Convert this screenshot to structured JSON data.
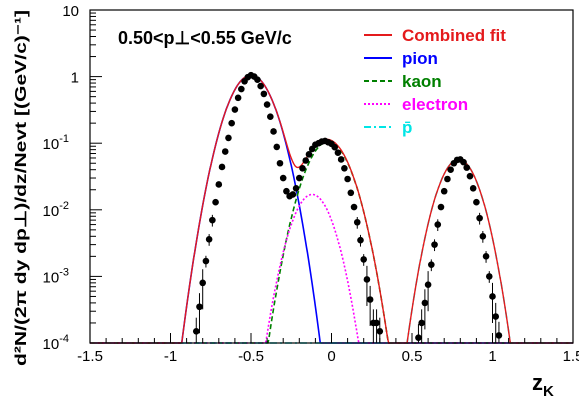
{
  "chart_data": {
    "type": "line",
    "y_scale": "log",
    "xlim": [
      -1.5,
      1.5
    ],
    "ylim": [
      0.0001,
      10
    ],
    "x_ticks": [
      "-1.5",
      "-1",
      "-0.5",
      "0",
      "0.5",
      "1",
      "1.5"
    ],
    "x_tick_values": [
      -1.5,
      -1,
      -0.5,
      0,
      0.5,
      1,
      1.5
    ],
    "y_ticks": [
      {
        "value": 10,
        "base": "10",
        "exp": ""
      },
      {
        "value": 1,
        "base": "1",
        "exp": ""
      },
      {
        "value": 0.1,
        "base": "10",
        "exp": "-1"
      },
      {
        "value": 0.01,
        "base": "10",
        "exp": "-2"
      },
      {
        "value": 0.001,
        "base": "10",
        "exp": "-3"
      },
      {
        "value": 0.0001,
        "base": "10",
        "exp": "-4"
      }
    ],
    "xlabel": {
      "main": "z",
      "sub": "K"
    },
    "ylabel_text": "d²N/(2π dy dp⊥)/dz/Nevt [(GeV/c)⁻¹]",
    "annotation": "0.50<p⊥<0.55 GeV/c",
    "legend": [
      {
        "label": "Combined fit",
        "color": "#e41a1c",
        "style": "solid"
      },
      {
        "label": "pion",
        "color": "#0000ff",
        "style": "solid"
      },
      {
        "label": "kaon",
        "color": "#008000",
        "style": "dashed"
      },
      {
        "label": "electron",
        "color": "#ff00ff",
        "style": "dotted"
      },
      {
        "label": "p̄",
        "color": "#00e5e5",
        "style": "dashdot"
      }
    ],
    "series": [
      {
        "name": "pion",
        "mean": -0.5,
        "sigma": 0.1,
        "amplitude": 1.05,
        "color": "#0000ff",
        "style": "solid"
      },
      {
        "name": "kaon",
        "mean": -0.02,
        "sigma": 0.1,
        "amplitude": 0.105,
        "color": "#008000",
        "style": "dashed"
      },
      {
        "name": "electron",
        "mean": -0.12,
        "sigma": 0.09,
        "amplitude": 0.017,
        "color": "#ff00ff",
        "style": "dotted"
      },
      {
        "name": "p̄",
        "mean": 0.79,
        "sigma": 0.09,
        "amplitude": 0.057,
        "color": "#00e5e5",
        "style": "dashdot"
      }
    ],
    "combined_fit_color": "#e41a1c",
    "data_points": [
      [
        -0.84,
        0.00015
      ],
      [
        -0.82,
        0.00035
      ],
      [
        -0.8,
        0.0008
      ],
      [
        -0.78,
        0.0017
      ],
      [
        -0.76,
        0.0036
      ],
      [
        -0.74,
        0.007
      ],
      [
        -0.72,
        0.013
      ],
      [
        -0.7,
        0.024
      ],
      [
        -0.68,
        0.044
      ],
      [
        -0.66,
        0.075
      ],
      [
        -0.64,
        0.12
      ],
      [
        -0.62,
        0.2
      ],
      [
        -0.6,
        0.32
      ],
      [
        -0.58,
        0.48
      ],
      [
        -0.56,
        0.65
      ],
      [
        -0.54,
        0.85
      ],
      [
        -0.52,
        0.98
      ],
      [
        -0.5,
        1.05
      ],
      [
        -0.48,
        1.0
      ],
      [
        -0.46,
        0.9
      ],
      [
        -0.44,
        0.72
      ],
      [
        -0.42,
        0.55
      ],
      [
        -0.4,
        0.38
      ],
      [
        -0.38,
        0.25
      ],
      [
        -0.36,
        0.15
      ],
      [
        -0.34,
        0.088
      ],
      [
        -0.32,
        0.05
      ],
      [
        -0.3,
        0.03
      ],
      [
        -0.28,
        0.019
      ],
      [
        -0.26,
        0.016
      ],
      [
        -0.24,
        0.017
      ],
      [
        -0.22,
        0.021
      ],
      [
        -0.2,
        0.03
      ],
      [
        -0.18,
        0.042
      ],
      [
        -0.16,
        0.055
      ],
      [
        -0.14,
        0.068
      ],
      [
        -0.12,
        0.082
      ],
      [
        -0.1,
        0.095
      ],
      [
        -0.08,
        0.1
      ],
      [
        -0.06,
        0.106
      ],
      [
        -0.04,
        0.108
      ],
      [
        -0.02,
        0.103
      ],
      [
        0.0,
        0.098
      ],
      [
        0.02,
        0.087
      ],
      [
        0.04,
        0.072
      ],
      [
        0.06,
        0.057
      ],
      [
        0.08,
        0.042
      ],
      [
        0.1,
        0.029
      ],
      [
        0.12,
        0.018
      ],
      [
        0.14,
        0.011
      ],
      [
        0.16,
        0.0065
      ],
      [
        0.18,
        0.0035
      ],
      [
        0.2,
        0.0018
      ],
      [
        0.22,
        0.0009
      ],
      [
        0.24,
        0.00045
      ],
      [
        0.26,
        0.0002
      ],
      [
        0.28,
        0.0002
      ],
      [
        0.3,
        0.00015
      ],
      [
        0.54,
        0.00012
      ],
      [
        0.56,
        0.0002
      ],
      [
        0.58,
        0.0004
      ],
      [
        0.6,
        0.00075
      ],
      [
        0.62,
        0.0015
      ],
      [
        0.64,
        0.003
      ],
      [
        0.66,
        0.006
      ],
      [
        0.68,
        0.011
      ],
      [
        0.7,
        0.019
      ],
      [
        0.72,
        0.029
      ],
      [
        0.74,
        0.04
      ],
      [
        0.76,
        0.05
      ],
      [
        0.78,
        0.056
      ],
      [
        0.8,
        0.057
      ],
      [
        0.82,
        0.052
      ],
      [
        0.84,
        0.043
      ],
      [
        0.86,
        0.032
      ],
      [
        0.88,
        0.021
      ],
      [
        0.9,
        0.013
      ],
      [
        0.92,
        0.0075
      ],
      [
        0.94,
        0.004
      ],
      [
        0.96,
        0.002
      ],
      [
        0.98,
        0.001
      ],
      [
        1.0,
        0.0005
      ],
      [
        1.02,
        0.00025
      ],
      [
        1.04,
        0.00013
      ]
    ]
  }
}
